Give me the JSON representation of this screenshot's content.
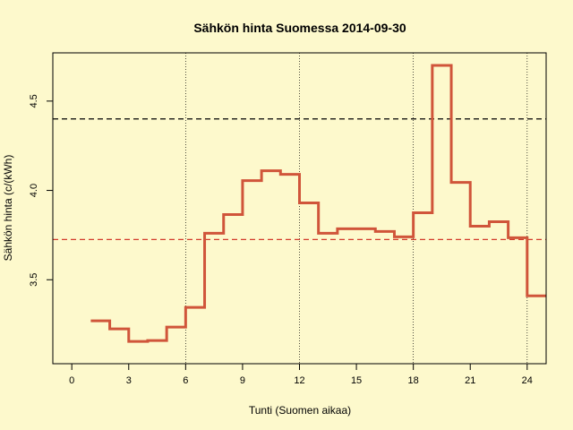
{
  "chart_data": {
    "type": "line",
    "step": true,
    "title": "Sähkön hinta Suomessa 2014-09-30",
    "xlabel": "Tunti (Suomen aikaa)",
    "ylabel": "Sähkön hinta (c/(kWh)",
    "xlim": [
      -1,
      25
    ],
    "ylim": [
      3.03,
      4.77
    ],
    "xticks": [
      0,
      3,
      6,
      9,
      12,
      15,
      18,
      21,
      24
    ],
    "yticks": [
      3.5,
      4.0,
      4.5
    ],
    "vlines": [
      6,
      12,
      18,
      24
    ],
    "hlines": [
      {
        "value": 4.4,
        "color": "#000000",
        "style": "dashed"
      },
      {
        "value": 3.725,
        "color": "#d33b2c",
        "style": "dashed"
      }
    ],
    "series": [
      {
        "color": "#d0553a",
        "x": [
          1,
          2,
          3,
          4,
          5,
          6,
          7,
          8,
          9,
          10,
          11,
          12,
          13,
          14,
          15,
          16,
          17,
          18,
          19,
          20,
          21,
          22,
          23,
          24
        ],
        "values": [
          3.27,
          3.225,
          3.155,
          3.16,
          3.235,
          3.345,
          3.76,
          3.865,
          4.055,
          4.11,
          4.09,
          3.93,
          3.76,
          3.785,
          3.785,
          3.77,
          3.74,
          3.875,
          4.7,
          4.045,
          3.8,
          3.825,
          3.735,
          3.41
        ]
      }
    ]
  }
}
